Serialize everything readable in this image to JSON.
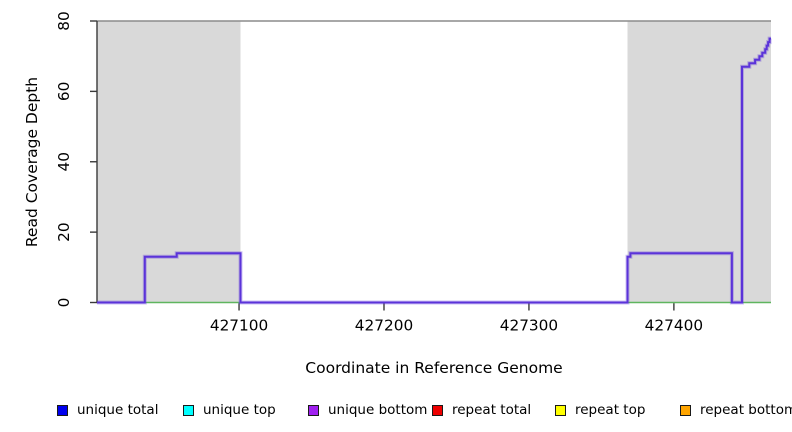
{
  "chart_data": {
    "type": "line",
    "subtype": "step-coverage",
    "title": "",
    "xlabel": "Coordinate in Reference Genome",
    "ylabel": "Read Coverage Depth",
    "xlim": [
      427002,
      427467
    ],
    "ylim": [
      0,
      80
    ],
    "x_ticks": [
      "427100",
      "427200",
      "427300",
      "427400"
    ],
    "x_tick_values": [
      427100,
      427200,
      427300,
      427400
    ],
    "y_ticks": [
      "0",
      "20",
      "40",
      "60",
      "80"
    ],
    "y_tick_values": [
      0,
      20,
      40,
      60,
      80
    ],
    "grid": false,
    "axis_color": "#3a3a3a",
    "top_border_color": "#8c8c8c",
    "shaded_regions": {
      "color": "#d9d9d9",
      "ranges": [
        [
          427002,
          427101
        ],
        [
          427368,
          427467
        ]
      ]
    },
    "series": [
      {
        "name": "baseline-green",
        "color": "#5fb55f",
        "width": 1.6,
        "points": [
          [
            427035,
            0
          ],
          [
            427467,
            0
          ]
        ]
      },
      {
        "name": "unique-bottom-coverage",
        "color": "#5b33d9",
        "width": 2,
        "halo": true,
        "points": [
          [
            427002,
            0
          ],
          [
            427035,
            0
          ],
          [
            427035,
            13
          ],
          [
            427057,
            13
          ],
          [
            427057,
            14
          ],
          [
            427101,
            14
          ],
          [
            427101,
            0
          ],
          [
            427368,
            0
          ],
          [
            427368,
            13
          ],
          [
            427370,
            13
          ],
          [
            427370,
            14
          ],
          [
            427440,
            14
          ],
          [
            427440,
            0
          ],
          [
            427447,
            0
          ],
          [
            427447,
            67
          ],
          [
            427452,
            67
          ],
          [
            427452,
            68
          ],
          [
            427456,
            68
          ],
          [
            427456,
            69
          ],
          [
            427459,
            69
          ],
          [
            427459,
            70
          ],
          [
            427461,
            70
          ],
          [
            427461,
            71
          ],
          [
            427463,
            71
          ],
          [
            427463,
            72
          ],
          [
            427464,
            72
          ],
          [
            427464,
            73
          ],
          [
            427465,
            73
          ],
          [
            427465,
            74
          ],
          [
            427466,
            74
          ],
          [
            427466,
            75
          ],
          [
            427467,
            75
          ]
        ]
      }
    ],
    "legend": {
      "position": "bottom",
      "items": [
        {
          "label": "unique total",
          "color": "#0000ee"
        },
        {
          "label": "unique top",
          "color": "#00ffff"
        },
        {
          "label": "unique bottom",
          "color": "#a020f0"
        },
        {
          "label": "repeat total",
          "color": "#ee0000"
        },
        {
          "label": "repeat top",
          "color": "#ffff00"
        },
        {
          "label": "repeat bottom",
          "color": "#ffa500"
        }
      ]
    }
  }
}
